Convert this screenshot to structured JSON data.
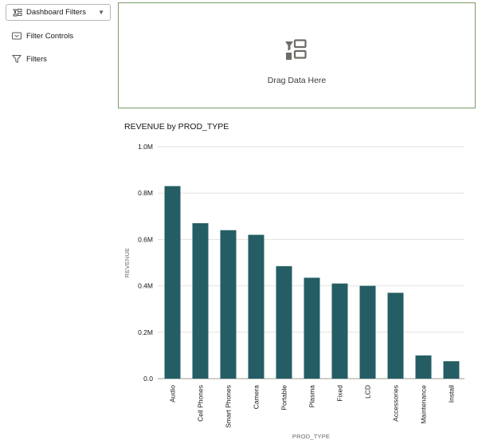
{
  "sidebar": {
    "dashboard_filters": {
      "label": "Dashboard Filters",
      "icon": "dashboard-filters-icon"
    },
    "filter_controls": {
      "label": "Filter Controls",
      "icon": "filter-controls-icon"
    },
    "filters": {
      "label": "Filters",
      "icon": "funnel-icon"
    }
  },
  "drop_zone": {
    "text": "Drag Data Here",
    "icon": "drag-data-icon"
  },
  "chart_data": {
    "type": "bar",
    "title": "REVENUE by PROD_TYPE",
    "xlabel": "PROD_TYPE",
    "ylabel": "REVENUE",
    "categories": [
      "Audio",
      "Cell Phones",
      "Smart Phones",
      "Camera",
      "Portable",
      "Plasma",
      "Fixed",
      "LCD",
      "Accessories",
      "Maintenance",
      "Install"
    ],
    "values": [
      0.83,
      0.67,
      0.64,
      0.62,
      0.485,
      0.435,
      0.41,
      0.4,
      0.37,
      0.1,
      0.075
    ],
    "ylim": [
      0,
      1.0
    ],
    "yticks": [
      {
        "value": 0,
        "label": "0.0"
      },
      {
        "value": 0.2,
        "label": "0.2M"
      },
      {
        "value": 0.4,
        "label": "0.4M"
      },
      {
        "value": 0.6,
        "label": "0.6M"
      },
      {
        "value": 0.8,
        "label": "0.8M"
      },
      {
        "value": 1.0,
        "label": "1.0M"
      }
    ],
    "grid": true,
    "bar_color": "#245e64"
  }
}
